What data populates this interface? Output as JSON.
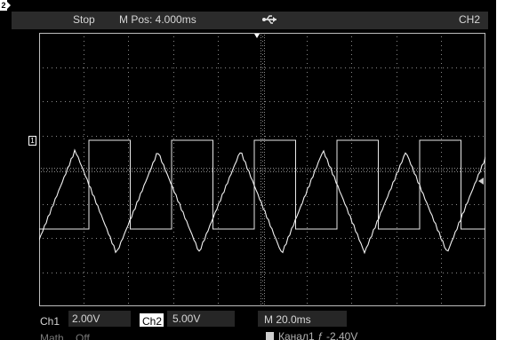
{
  "top_bar": {
    "status": "Stop",
    "m_pos": "M Pos: 4.000ms",
    "usb_icon": "usb-icon",
    "channel": "CH2"
  },
  "markers": {
    "ch1": "1",
    "ch2": "2"
  },
  "bottom_bar": {
    "ch1_label": "Ch1",
    "ch1_scale": "2.00V",
    "ch2_label": "Ch2",
    "ch2_scale": "5.00V",
    "timebase": "M 20.0ms",
    "math": "Math",
    "math_state": "Off",
    "trigger_info": "Канал1 ƒ -2.40V"
  },
  "colors": {
    "trace": "#ffffff",
    "grid": "#9a9a9a",
    "background": "#000000"
  }
}
